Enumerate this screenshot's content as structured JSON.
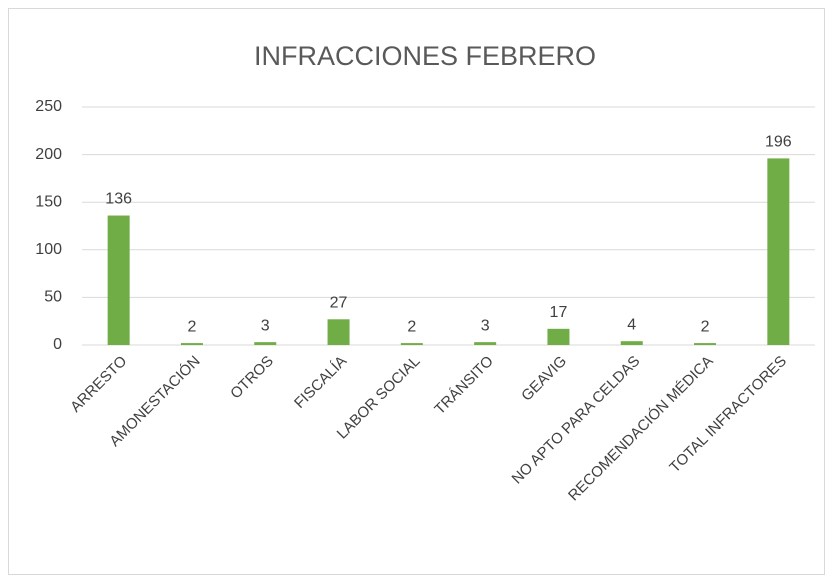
{
  "chart_data": {
    "type": "bar",
    "title": "INFRACCIONES FEBRERO",
    "categories": [
      "ARRESTO",
      "AMONESTACIÓN",
      "OTROS",
      "FISCALÍA",
      "LABOR SOCIAL",
      "TRÁNSITO",
      "GEAVIG",
      "NO APTO PARA CELDAS",
      "RECOMENDACIÓN MÉDICA",
      "TOTAL INFRACTORES"
    ],
    "values": [
      136,
      2,
      3,
      27,
      2,
      3,
      17,
      4,
      2,
      196
    ],
    "color": "#70ad47",
    "ylim": [
      0,
      250
    ],
    "yticks": [
      0,
      50,
      100,
      150,
      200,
      250
    ],
    "grid": true
  }
}
